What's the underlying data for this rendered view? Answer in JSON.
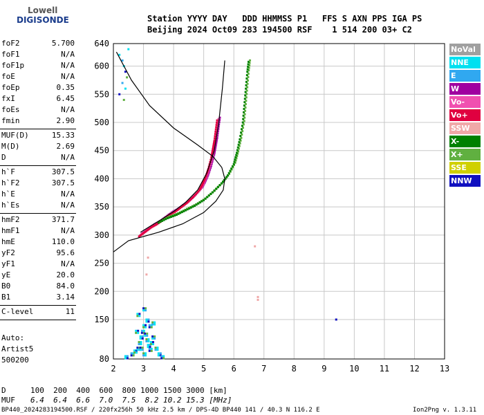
{
  "logo": {
    "line1": "Lowell",
    "line2": "DIGISONDE"
  },
  "header": {
    "line1": "Station YYYY DAY   DDD HHMMSS P1   FFS S AXN PPS IGA PS",
    "line2": "Beijing 2024 Oct09 283 194500 RSF    1 514 200 03+ C2"
  },
  "params": [
    {
      "label": "foF2",
      "value": "5.700"
    },
    {
      "label": "foF1",
      "value": "N/A"
    },
    {
      "label": "foF1p",
      "value": "N/A"
    },
    {
      "label": "foE",
      "value": "N/A"
    },
    {
      "label": "foEp",
      "value": "0.35"
    },
    {
      "label": "fxI",
      "value": "6.45"
    },
    {
      "label": "foEs",
      "value": "N/A"
    },
    {
      "label": "fmin",
      "value": "2.90"
    },
    {
      "label": "MUF(D)",
      "value": "15.33"
    },
    {
      "label": "M(D)",
      "value": "2.69"
    },
    {
      "label": "D",
      "value": "N/A"
    },
    {
      "label": "h`F",
      "value": "307.5"
    },
    {
      "label": "h`F2",
      "value": "307.5"
    },
    {
      "label": "h`E",
      "value": "N/A"
    },
    {
      "label": "h`Es",
      "value": "N/A"
    },
    {
      "label": "hmF2",
      "value": "371.7"
    },
    {
      "label": "hmF1",
      "value": "N/A"
    },
    {
      "label": "hmE",
      "value": "110.0"
    },
    {
      "label": "yF2",
      "value": "95.6"
    },
    {
      "label": "yF1",
      "value": "N/A"
    },
    {
      "label": "yE",
      "value": "20.0"
    },
    {
      "label": "B0",
      "value": "84.0"
    },
    {
      "label": "B1",
      "value": "3.14"
    },
    {
      "label": "C-level",
      "value": "11"
    }
  ],
  "auto": {
    "line1": "Auto:",
    "line2": "Artist5",
    "line3": "500200"
  },
  "legend": [
    {
      "label": "NoVal",
      "color": "#a0a0a0"
    },
    {
      "label": "NNE",
      "color": "#00e0f0"
    },
    {
      "label": "E",
      "color": "#30a8f0"
    },
    {
      "label": "W",
      "color": "#a000a0"
    },
    {
      "label": "Vo-",
      "color": "#f050b0"
    },
    {
      "label": "Vo+",
      "color": "#e00040"
    },
    {
      "label": "SSW",
      "color": "#f0a8a8"
    },
    {
      "label": "X-",
      "color": "#008000"
    },
    {
      "label": "X+",
      "color": "#60b040"
    },
    {
      "label": "SSE",
      "color": "#d0d000"
    },
    {
      "label": "NNW",
      "color": "#1010c0"
    }
  ],
  "muf_table": {
    "d_label": "D",
    "d_values": "100  200  400  600  800 1000 1500 3000 [km]",
    "muf_label": "MUF",
    "muf_values": "6.4  6.4  6.6  7.0  7.5  8.2 10.2 15.3 [MHz]"
  },
  "footer": {
    "left": "BP440_2024283194500.RSF / 220fx256h 50 kHz 2.5 km / DPS-4D BP440 141 / 40.3 N 116.2 E",
    "right": "Ion2Png v. 1.3.11"
  },
  "chart_data": {
    "type": "scatter",
    "x_ticks": [
      "2",
      "3",
      "4",
      "5",
      "6",
      "7",
      "8",
      "9",
      "10",
      "11",
      "12",
      "13"
    ],
    "y_ticks": [
      "80",
      "150",
      "200",
      "250",
      "300",
      "350",
      "400",
      "450",
      "500",
      "550",
      "600",
      "640"
    ],
    "xlim": [
      2,
      13
    ],
    "ylim": [
      80,
      640
    ],
    "grid": true,
    "profile_curve": {
      "x": [
        1.6,
        2.5,
        3.5,
        4.3,
        5.0,
        5.4,
        5.65,
        5.7,
        5.6,
        5.3,
        4.8,
        4.0,
        3.2,
        2.6,
        2.1
      ],
      "y": [
        270,
        290,
        305,
        320,
        340,
        360,
        380,
        400,
        420,
        440,
        460,
        490,
        530,
        575,
        625
      ]
    },
    "trace_curve": {
      "x": [
        2.9,
        3.2,
        3.6,
        4.0,
        4.4,
        4.8,
        5.1,
        5.35,
        5.5,
        5.62,
        5.7
      ],
      "y": [
        305,
        315,
        328,
        342,
        358,
        380,
        410,
        450,
        500,
        560,
        610
      ]
    },
    "o_trace": {
      "x": [
        2.9,
        3.1,
        3.3,
        3.5,
        3.7,
        3.9,
        4.1,
        4.3,
        4.5,
        4.7,
        4.9,
        5.0,
        5.1,
        5.2,
        5.3,
        5.35,
        5.4,
        5.45,
        5.5
      ],
      "y": [
        300,
        308,
        316,
        322,
        330,
        338,
        344,
        352,
        360,
        370,
        382,
        392,
        404,
        420,
        440,
        455,
        470,
        490,
        510
      ]
    },
    "x_trace": {
      "x": [
        3.5,
        3.8,
        4.1,
        4.4,
        4.7,
        5.0,
        5.3,
        5.6,
        5.8,
        6.0,
        6.1,
        6.2,
        6.3,
        6.35,
        6.4,
        6.45,
        6.5
      ],
      "y": [
        322,
        330,
        336,
        344,
        352,
        362,
        376,
        392,
        406,
        426,
        446,
        470,
        500,
        530,
        560,
        590,
        612
      ]
    },
    "noise_low": {
      "x": [
        2.4,
        2.6,
        2.7,
        2.8,
        2.85,
        2.9,
        2.95,
        3.0,
        3.05,
        3.1,
        3.15,
        3.2,
        3.25,
        3.3,
        3.4,
        3.5,
        3.6,
        2.75,
        2.9,
        3.0,
        3.1,
        3.2,
        2.8,
        3.0,
        3.3
      ],
      "y": [
        85,
        90,
        95,
        100,
        110,
        120,
        130,
        140,
        125,
        115,
        105,
        98,
        110,
        120,
        100,
        90,
        85,
        130,
        100,
        90,
        150,
        140,
        160,
        170,
        145
      ]
    },
    "noise_top": {
      "x": [
        2.2,
        2.3,
        2.35,
        2.4,
        2.45,
        2.5,
        2.3,
        2.4,
        2.2,
        2.35
      ],
      "y": [
        620,
        610,
        600,
        590,
        580,
        630,
        570,
        560,
        550,
        540
      ]
    },
    "isolated": {
      "x": [
        6.7,
        6.8,
        6.8,
        9.4,
        3.1,
        3.15
      ],
      "y": [
        280,
        190,
        185,
        150,
        230,
        260
      ]
    }
  }
}
